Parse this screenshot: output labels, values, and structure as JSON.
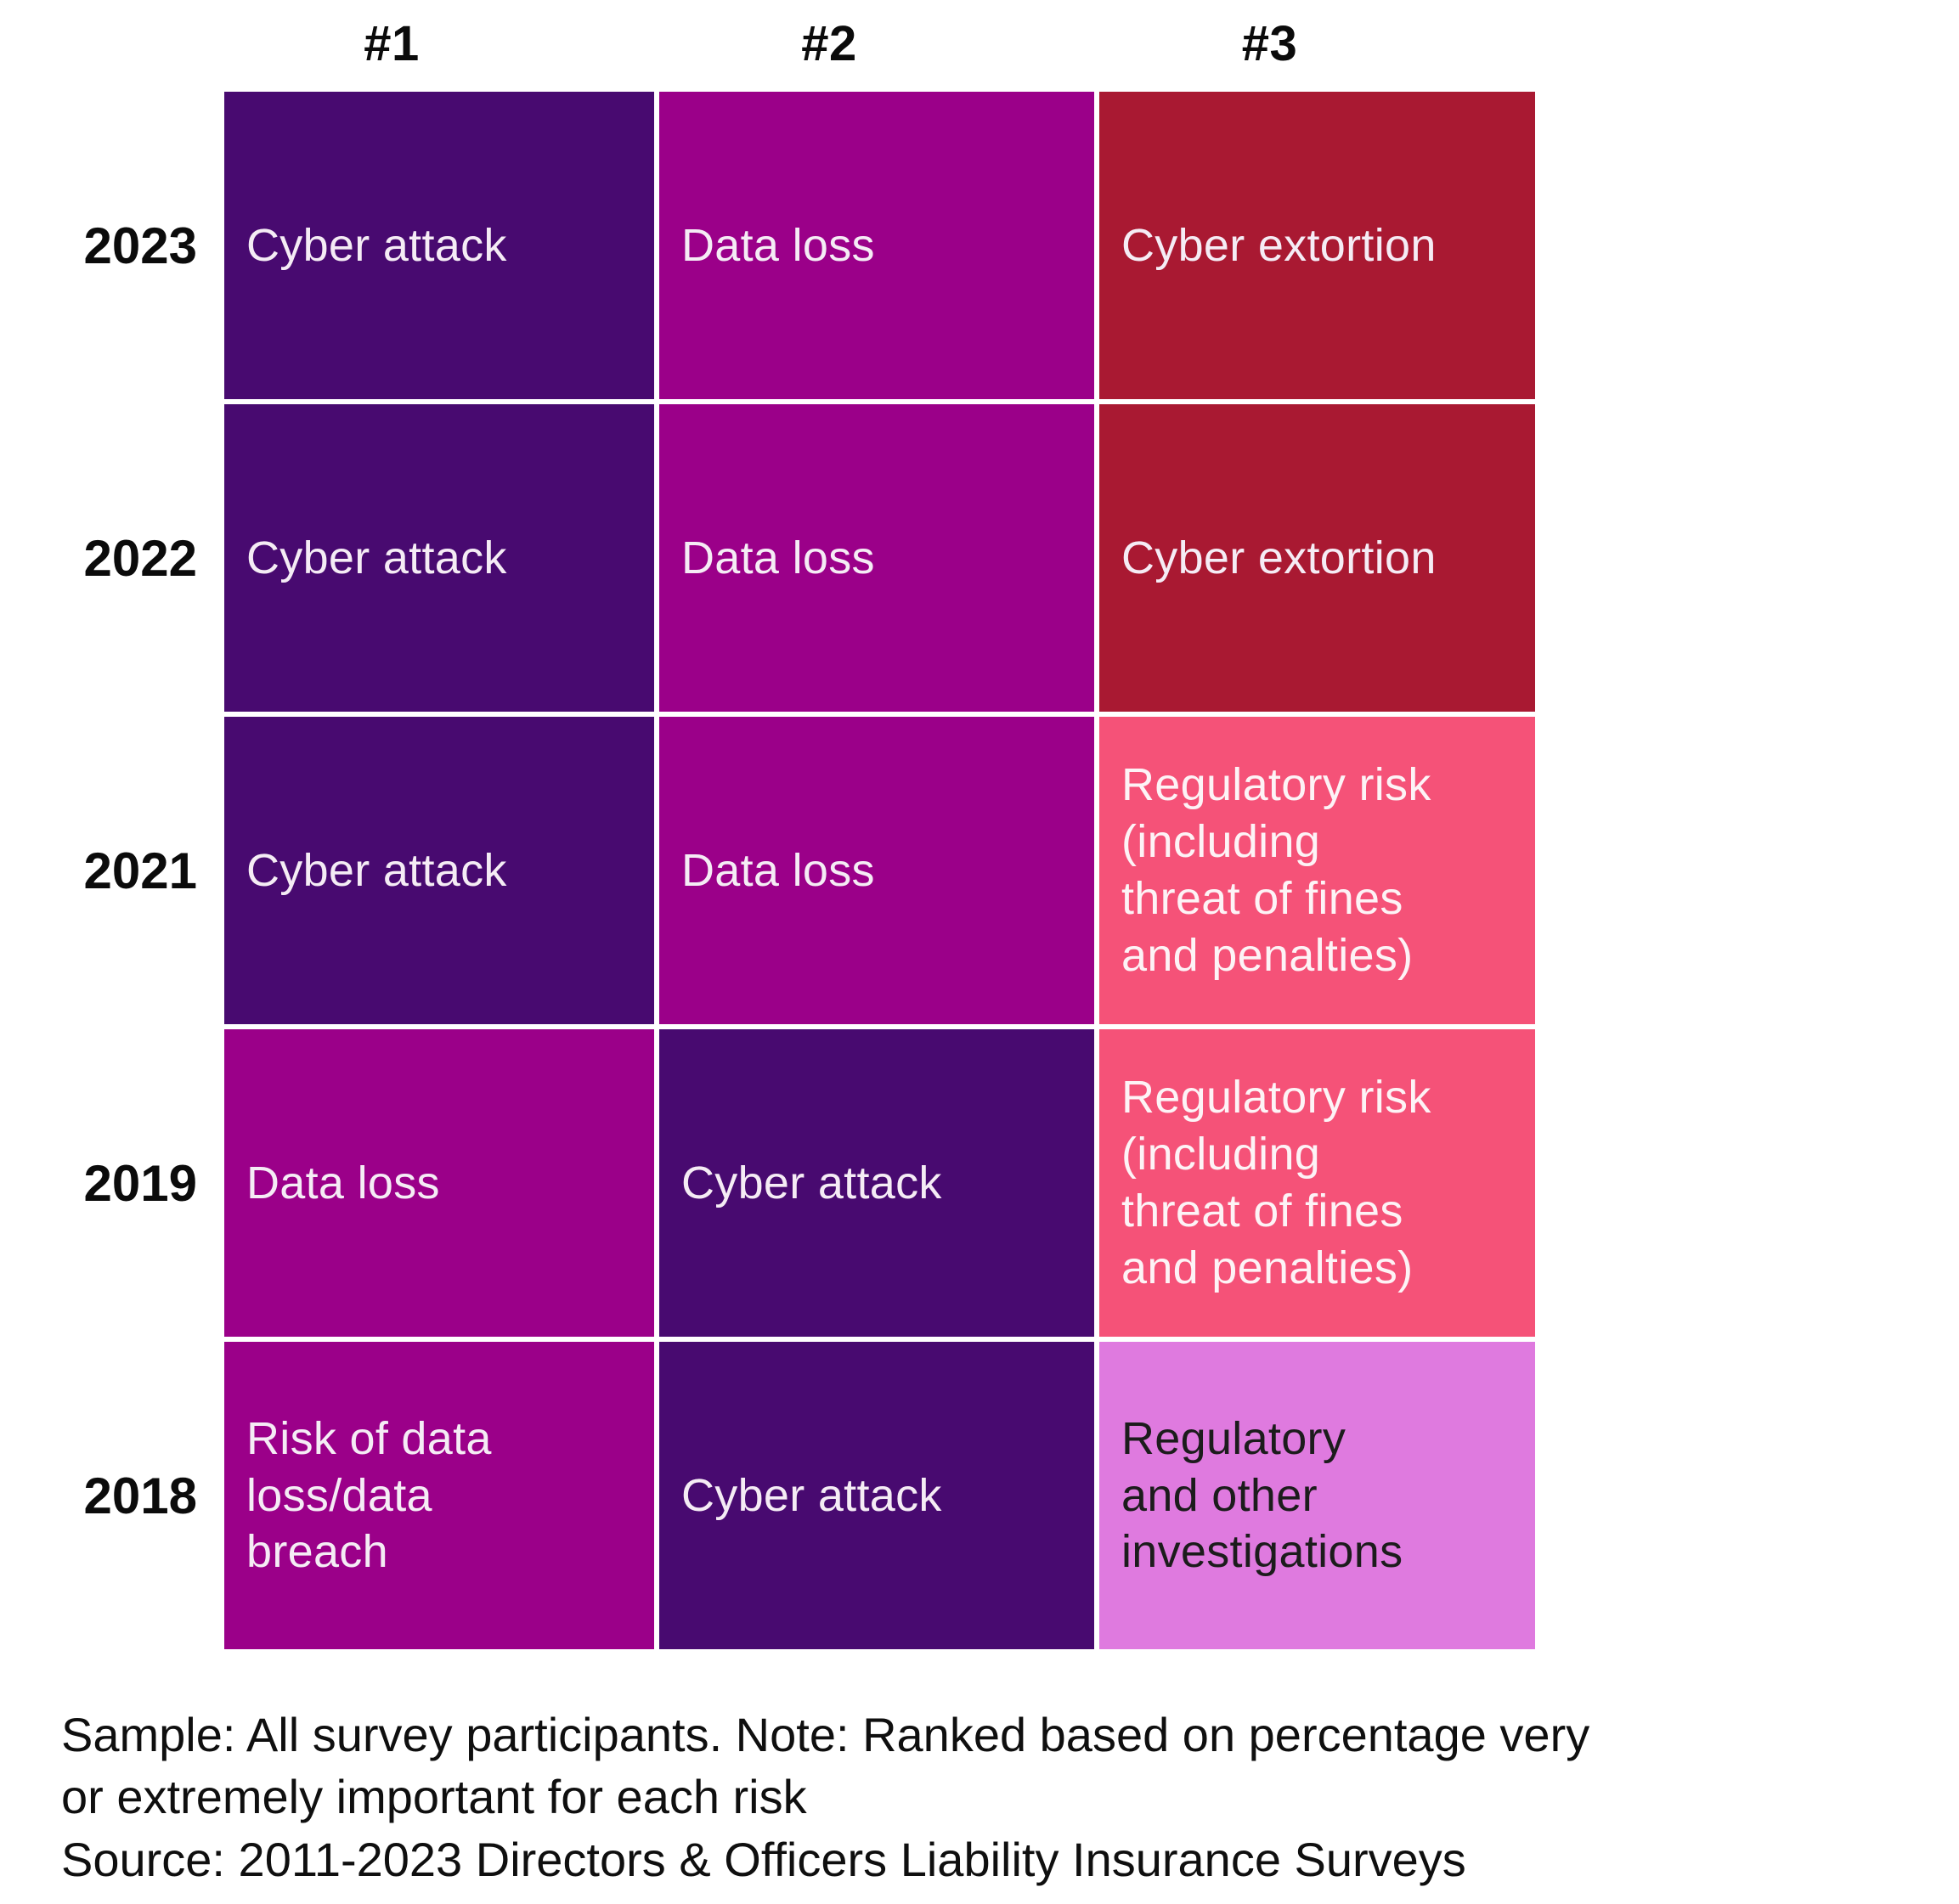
{
  "chart_data": {
    "type": "table",
    "title": "",
    "description": "Top three ranked risks by survey year",
    "columns": [
      "#1",
      "#2",
      "#3"
    ],
    "rows": [
      {
        "year": "2023",
        "values": [
          "Cyber attack",
          "Data loss",
          "Cyber extortion"
        ],
        "cells": [
          {
            "text": "Cyber attack",
            "bg": "#480A70",
            "fg": "#F5ECF5"
          },
          {
            "text": "Data loss",
            "bg": "#9B0089",
            "fg": "#F5ECF5"
          },
          {
            "text": "Cyber extortion",
            "bg": "#A91932",
            "fg": "#F5ECF5"
          }
        ]
      },
      {
        "year": "2022",
        "values": [
          "Cyber attack",
          "Data loss",
          "Cyber extortion"
        ],
        "cells": [
          {
            "text": "Cyber attack",
            "bg": "#480A70",
            "fg": "#F5ECF5"
          },
          {
            "text": "Data loss",
            "bg": "#9B0089",
            "fg": "#F5ECF5"
          },
          {
            "text": "Cyber extortion",
            "bg": "#A91932",
            "fg": "#F5ECF5"
          }
        ]
      },
      {
        "year": "2021",
        "values": [
          "Cyber attack",
          "Data loss",
          "Regulatory risk (including threat of fines and penalties)"
        ],
        "cells": [
          {
            "text": "Cyber attack",
            "bg": "#480A70",
            "fg": "#F5ECF5"
          },
          {
            "text": "Data loss",
            "bg": "#9B0089",
            "fg": "#F5ECF5"
          },
          {
            "text": "Regulatory risk\n(including\nthreat of fines\nand penalties)",
            "bg": "#F55278",
            "fg": "#FDF3F6"
          }
        ]
      },
      {
        "year": "2019",
        "values": [
          "Data loss",
          "Cyber attack",
          "Regulatory risk (including threat of fines and penalties)"
        ],
        "cells": [
          {
            "text": "Data loss",
            "bg": "#9B0089",
            "fg": "#F5ECF5"
          },
          {
            "text": "Cyber attack",
            "bg": "#480A70",
            "fg": "#F5ECF5"
          },
          {
            "text": "Regulatory risk\n(including\nthreat of fines\nand penalties)",
            "bg": "#F55278",
            "fg": "#FDF3F6"
          }
        ]
      },
      {
        "year": "2018",
        "values": [
          "Risk of data loss/data breach",
          "Cyber attack",
          "Regulatory and other investigations"
        ],
        "cells": [
          {
            "text": "Risk of data\nloss/data\nbreach",
            "bg": "#9B0089",
            "fg": "#F5ECF5"
          },
          {
            "text": "Cyber attack",
            "bg": "#480A70",
            "fg": "#F5ECF5"
          },
          {
            "text": "Regulatory\nand other\ninvestigations",
            "bg": "#DF7ADF",
            "fg": "#1C1C1C"
          }
        ]
      }
    ],
    "palette": {
      "dark_purple": "#480A70",
      "magenta": "#9B0089",
      "dark_red": "#A91932",
      "pink": "#F55278",
      "orchid": "#DF7ADF"
    },
    "notes": {
      "sample_note": "Sample: All survey participants. Note: Ranked based on percentage very\nor extremely important for each risk",
      "source_note": "Source: 2011-2023 Directors & Officers Liability Insurance Surveys"
    }
  }
}
